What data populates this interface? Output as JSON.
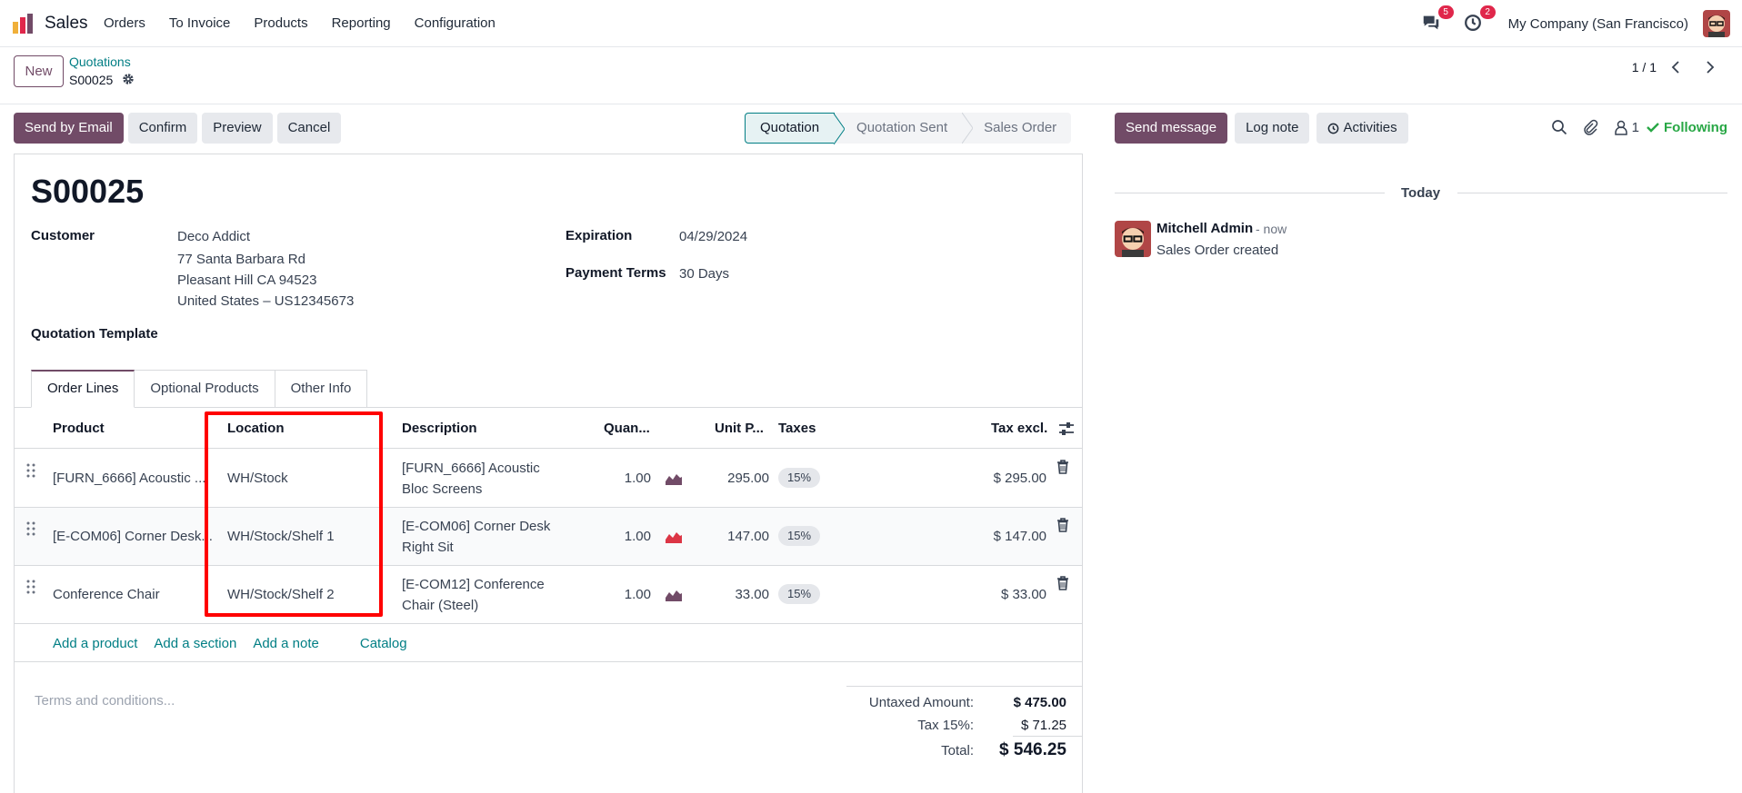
{
  "navbar": {
    "app_name": "Sales",
    "menu": [
      "Orders",
      "To Invoice",
      "Products",
      "Reporting",
      "Configuration"
    ],
    "messages_badge": "5",
    "activities_badge": "2",
    "company": "My Company (San Francisco)"
  },
  "control_panel": {
    "new_label": "New",
    "breadcrumb_parent": "Quotations",
    "breadcrumb_current": "S00025",
    "pager": "1 / 1"
  },
  "actions": {
    "send_email": "Send by Email",
    "confirm": "Confirm",
    "preview": "Preview",
    "cancel": "Cancel"
  },
  "statusbar": {
    "stages": [
      "Quotation",
      "Quotation Sent",
      "Sales Order"
    ],
    "active": "Quotation"
  },
  "form": {
    "name": "S00025",
    "customer_label": "Customer",
    "customer_name": "Deco Addict",
    "customer_address": [
      "77 Santa Barbara Rd",
      "Pleasant Hill CA 94523",
      "United States – US12345673"
    ],
    "expiration_label": "Expiration",
    "expiration_value": "04/29/2024",
    "payment_terms_label": "Payment Terms",
    "payment_terms_value": "30 Days",
    "template_label": "Quotation Template"
  },
  "tabs": [
    "Order Lines",
    "Optional Products",
    "Other Info"
  ],
  "order_lines": {
    "columns": {
      "product": "Product",
      "location": "Location",
      "description": "Description",
      "quantity": "Quan...",
      "unit_price": "Unit P...",
      "taxes": "Taxes",
      "subtotal": "Tax excl."
    },
    "rows": [
      {
        "product": "[FURN_6666] Acoustic ...",
        "location": "WH/Stock",
        "description": [
          "[FURN_6666] Acoustic",
          "Bloc Screens"
        ],
        "quantity": "1.00",
        "unit_price": "295.00",
        "tax": "15%",
        "subtotal": "$ 295.00",
        "forecast_color": "#714b67"
      },
      {
        "product": "[E-COM06] Corner Desk...",
        "location": "WH/Stock/Shelf 1",
        "description": [
          "[E-COM06] Corner Desk",
          "Right Sit"
        ],
        "quantity": "1.00",
        "unit_price": "147.00",
        "tax": "15%",
        "subtotal": "$ 147.00",
        "forecast_color": "#dc3545"
      },
      {
        "product": "Conference Chair",
        "location": "WH/Stock/Shelf 2",
        "description": [
          "[E-COM12] Conference",
          "Chair (Steel)"
        ],
        "quantity": "1.00",
        "unit_price": "33.00",
        "tax": "15%",
        "subtotal": "$ 33.00",
        "forecast_color": "#714b67"
      }
    ],
    "add_product": "Add a product",
    "add_section": "Add a section",
    "add_note": "Add a note",
    "catalog": "Catalog"
  },
  "footer": {
    "terms_placeholder": "Terms and conditions...",
    "untaxed_label": "Untaxed Amount:",
    "untaxed_value": "$ 475.00",
    "tax_label": "Tax 15%:",
    "tax_value": "$ 71.25",
    "total_label": "Total:",
    "total_value": "$ 546.25"
  },
  "chatter": {
    "send_message": "Send message",
    "log_note": "Log note",
    "activities": "Activities",
    "followers_count": "1",
    "following": "Following",
    "date_separator": "Today",
    "message": {
      "author": "Mitchell Admin",
      "time": "- now",
      "body": "Sales Order created"
    }
  },
  "colors": {
    "brand": "#714b67",
    "link": "#017e84",
    "highlight": "#ff0000",
    "following": "#28a745"
  }
}
